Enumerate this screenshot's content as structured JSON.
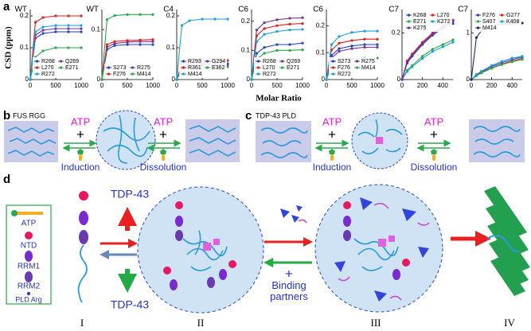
{
  "panel_a": {
    "label": "a",
    "xlabel": "Molar Ratio",
    "ylabel": "CSD (ppm)"
  },
  "chart_data": [
    {
      "type": "line",
      "title": "WT",
      "legend": "lower",
      "x": [
        0,
        100,
        250,
        500,
        750,
        1000
      ],
      "xlim": [
        0,
        1000
      ],
      "xticks": [
        0,
        500,
        1000
      ],
      "ylim": [
        0,
        0.22
      ],
      "yticks": [
        0,
        0.1,
        0.2
      ],
      "series": [
        {
          "name": "R268",
          "color": "#1f3fbf",
          "values": [
            0,
            0.13,
            0.145,
            0.15,
            0.15,
            0.15
          ]
        },
        {
          "name": "Q269",
          "color": "#7030a0",
          "values": [
            0,
            0.14,
            0.155,
            0.16,
            0.16,
            0.16
          ]
        },
        {
          "name": "L270",
          "color": "#e02020",
          "values": [
            0,
            0.18,
            0.195,
            0.2,
            0.2,
            0.2
          ]
        },
        {
          "name": "E271",
          "color": "#2aa84a",
          "values": [
            0,
            0.07,
            0.09,
            0.1,
            0.1,
            0.1
          ]
        },
        {
          "name": "R272",
          "color": "#1aa0d8",
          "values": [
            0,
            0.15,
            0.165,
            0.17,
            0.17,
            0.17
          ]
        }
      ]
    },
    {
      "type": "line",
      "title": "WT",
      "legend": "lower",
      "x": [
        0,
        100,
        250,
        500,
        750,
        1000
      ],
      "xlim": [
        0,
        1000
      ],
      "xticks": [
        0,
        500,
        1000
      ],
      "ylim": [
        0,
        0.14
      ],
      "yticks": [
        0,
        0.1
      ],
      "series": [
        {
          "name": "S273",
          "color": "#1f3fbf",
          "values": [
            0,
            0.06,
            0.068,
            0.07,
            0.07,
            0.07
          ]
        },
        {
          "name": "R275",
          "color": "#7030a0",
          "values": [
            0,
            0.065,
            0.072,
            0.075,
            0.076,
            0.076
          ]
        },
        {
          "name": "F276",
          "color": "#e02020",
          "values": [
            0,
            0.07,
            0.076,
            0.078,
            0.079,
            0.08
          ]
        },
        {
          "name": "M414",
          "color": "#2aa84a",
          "values": [
            0,
            0.12,
            0.128,
            0.13,
            0.13,
            0.13
          ]
        }
      ]
    },
    {
      "type": "line",
      "title": "C4",
      "legend": "lower",
      "x": [
        0,
        100,
        250,
        500,
        750,
        1000
      ],
      "xlim": [
        0,
        1000
      ],
      "xticks": [
        0,
        500,
        1000
      ],
      "ylim": [
        0,
        0.22
      ],
      "yticks": [
        0,
        0.1,
        0.2
      ],
      "series": [
        {
          "name": "R293",
          "color": "#1f3fbf",
          "values": [
            0,
            0.04,
            0.048,
            0.05,
            0.05,
            0.05
          ]
        },
        {
          "name": "G294",
          "color": "#7030a0",
          "values": [
            0,
            0.035,
            0.042,
            0.045,
            0.046,
            0.046
          ]
        },
        {
          "name": "R361",
          "color": "#e02020",
          "values": [
            0,
            0.05,
            0.058,
            0.06,
            0.06,
            0.06
          ]
        },
        {
          "name": "E362",
          "color": "#2aa84a",
          "values": [
            0,
            0.03,
            0.038,
            0.04,
            0.04,
            0.04
          ]
        },
        {
          "name": "M414",
          "color": "#1aa0d8",
          "values": [
            0,
            0.17,
            0.185,
            0.19,
            0.19,
            0.19
          ]
        }
      ]
    },
    {
      "type": "line",
      "title": "C6",
      "legend": "lower",
      "x": [
        0,
        100,
        250,
        500,
        750,
        1000
      ],
      "xlim": [
        0,
        1000
      ],
      "xticks": [
        0,
        500,
        1000
      ],
      "ylim": [
        0,
        0.24
      ],
      "yticks": [
        0,
        0.1,
        0.2
      ],
      "series": [
        {
          "name": "R268",
          "color": "#1f3fbf",
          "values": [
            0,
            0.09,
            0.11,
            0.12,
            0.12,
            0.125
          ]
        },
        {
          "name": "Q269",
          "color": "#7030a0",
          "values": [
            0,
            0.17,
            0.195,
            0.205,
            0.21,
            0.212
          ]
        },
        {
          "name": "L270",
          "color": "#e02020",
          "values": [
            0,
            0.15,
            0.175,
            0.185,
            0.19,
            0.192
          ]
        },
        {
          "name": "E271",
          "color": "#2aa84a",
          "values": [
            0,
            0.07,
            0.09,
            0.1,
            0.1,
            0.102
          ]
        },
        {
          "name": "R272",
          "color": "#1aa0d8",
          "values": [
            0,
            0.13,
            0.155,
            0.165,
            0.17,
            0.172
          ]
        }
      ]
    },
    {
      "type": "line",
      "title": "C6",
      "legend": "lower",
      "x": [
        0,
        100,
        250,
        500,
        750,
        1000
      ],
      "xlim": [
        0,
        1000
      ],
      "xticks": [
        0,
        500,
        1000
      ],
      "ylim": [
        0,
        0.26
      ],
      "yticks": [
        0,
        0.1,
        0.2
      ],
      "series": [
        {
          "name": "S273",
          "color": "#1f3fbf",
          "values": [
            0,
            0.09,
            0.115,
            0.125,
            0.13,
            0.13
          ]
        },
        {
          "name": "R275",
          "color": "#7030a0",
          "values": [
            0,
            0.08,
            0.105,
            0.115,
            0.12,
            0.12
          ]
        },
        {
          "name": "F276",
          "color": "#e02020",
          "values": [
            0,
            0.11,
            0.135,
            0.145,
            0.15,
            0.15
          ]
        },
        {
          "name": "M414",
          "color": "#2aa84a",
          "values": [
            0,
            0.05,
            0.07,
            0.078,
            0.08,
            0.08
          ]
        },
        {
          "name": "R272",
          "color": "#1aa0d8",
          "values": [
            0,
            0.13,
            0.16,
            0.175,
            0.18,
            0.18
          ]
        }
      ]
    },
    {
      "type": "line",
      "title": "C7",
      "legend": "upper",
      "x": [
        0,
        50,
        100,
        200,
        300,
        400,
        500
      ],
      "xlim": [
        0,
        500
      ],
      "xticks": [
        0,
        200,
        400
      ],
      "ylim": [
        0,
        0.3
      ],
      "yticks": [
        0,
        0.2
      ],
      "series": [
        {
          "name": "K268",
          "color": "#1f3fbf",
          "values": [
            0,
            0.07,
            0.1,
            0.15,
            0.19,
            0.22,
            0.24
          ]
        },
        {
          "name": "L270",
          "color": "#e02020",
          "values": [
            0,
            0.08,
            0.11,
            0.16,
            0.2,
            0.23,
            0.255
          ]
        },
        {
          "name": "E271",
          "color": "#2aa84a",
          "values": [
            0,
            0.04,
            0.06,
            0.1,
            0.13,
            0.15,
            0.17
          ]
        },
        {
          "name": "K272",
          "color": "#1aa0d8",
          "values": [
            0,
            0.035,
            0.055,
            0.09,
            0.12,
            0.14,
            0.16
          ]
        },
        {
          "name": "K275",
          "color": "#7030a0",
          "values": [
            0,
            0.075,
            0.105,
            0.155,
            0.195,
            0.225,
            0.25
          ]
        }
      ]
    },
    {
      "type": "line",
      "title": "C7",
      "legend": "upper",
      "x": [
        0,
        50,
        100,
        200,
        300,
        400,
        500
      ],
      "xlim": [
        0,
        500
      ],
      "xticks": [
        0,
        200,
        400
      ],
      "ylim": [
        0,
        1.5
      ],
      "yticks": [
        0,
        1
      ],
      "series": [
        {
          "name": "F276",
          "color": "#1f3fbf",
          "values": [
            0,
            0.1,
            0.17,
            0.28,
            0.36,
            0.43,
            0.48
          ]
        },
        {
          "name": "G277",
          "color": "#e02020",
          "values": [
            0,
            0.09,
            0.15,
            0.25,
            0.33,
            0.4,
            0.45
          ]
        },
        {
          "name": "S407",
          "color": "#2aa84a",
          "values": [
            0,
            0.08,
            0.14,
            0.24,
            0.32,
            0.38,
            0.43
          ]
        },
        {
          "name": "K408",
          "color": "#1aa0d8",
          "values": [
            0,
            0.11,
            0.18,
            0.3,
            0.39,
            0.46,
            0.5
          ]
        },
        {
          "name": "M414",
          "color": "#1a2a6a",
          "values": [
            0,
            0.9,
            1.05,
            1.15,
            1.18,
            1.2,
            1.21
          ]
        }
      ]
    }
  ],
  "panel_b": {
    "label": "b",
    "title": "FUS RGG",
    "reagent_left": "ATP",
    "plus_left": "+",
    "reagent_right": "ATP",
    "plus_right": "+",
    "step_left": "Induction",
    "step_right": "Dissolution"
  },
  "panel_c": {
    "label": "c",
    "title": "TDP-43 PLD",
    "reagent_left": "ATP",
    "plus_left": "+",
    "reagent_right": "ATP",
    "plus_right": "+",
    "step_left": "Induction",
    "step_right": "Dissolution"
  },
  "panel_d": {
    "label": "d",
    "legend": [
      "ATP",
      "NTD",
      "RRM1",
      "RRM2",
      "PLD Arg"
    ],
    "protein_top": "TDP-43",
    "protein_bottom": "TDP-43",
    "plus": "+",
    "partners": "Binding partners",
    "stages": [
      "I",
      "II",
      "III",
      "IV"
    ]
  }
}
